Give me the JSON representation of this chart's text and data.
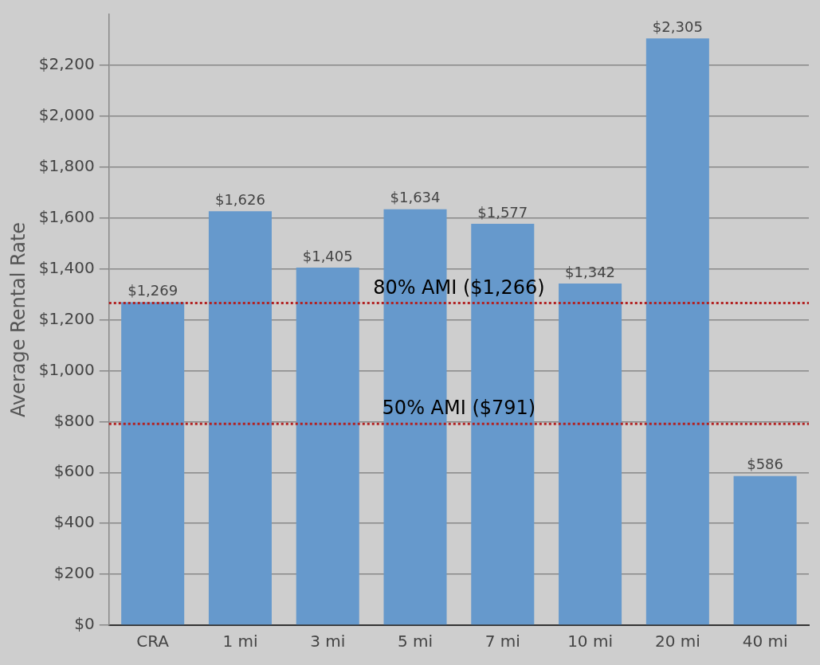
{
  "chart_data": {
    "type": "bar",
    "ylabel": "Average Rental Rate",
    "categories": [
      "CRA",
      "1 mi",
      "3 mi",
      "5 mi",
      "7 mi",
      "10 mi",
      "20 mi",
      "40 mi"
    ],
    "values": [
      1269,
      1626,
      1405,
      1634,
      1577,
      1342,
      2305,
      586
    ],
    "value_labels": [
      "$1,269",
      "$1,626",
      "$1,405",
      "$1,634",
      "$1,577",
      "$1,342",
      "$2,305",
      "$586"
    ],
    "color": "#6699cc",
    "ylim": [
      0,
      2400
    ],
    "yticks": [
      {
        "value": 0,
        "label": "$0"
      },
      {
        "value": 200,
        "label": "$200"
      },
      {
        "value": 400,
        "label": "$400"
      },
      {
        "value": 600,
        "label": "$600"
      },
      {
        "value": 800,
        "label": "$800"
      },
      {
        "value": 1000,
        "label": "$1,000"
      },
      {
        "value": 1200,
        "label": "$1,200"
      },
      {
        "value": 1400,
        "label": "$1,400"
      },
      {
        "value": 1600,
        "label": "$1,600"
      },
      {
        "value": 1800,
        "label": "$1,800"
      },
      {
        "value": 2000,
        "label": "$2,000"
      },
      {
        "value": 2200,
        "label": "$2,200"
      }
    ],
    "grid": "y",
    "ref_lines": [
      {
        "axis": "y",
        "value": 1266,
        "label": "80% AMI ($1,266)",
        "color": "#b22222",
        "line_style": "dotted"
      },
      {
        "axis": "y",
        "value": 791,
        "label": "50% AMI ($791)",
        "color": "#b22222",
        "line_style": "dotted"
      }
    ]
  }
}
